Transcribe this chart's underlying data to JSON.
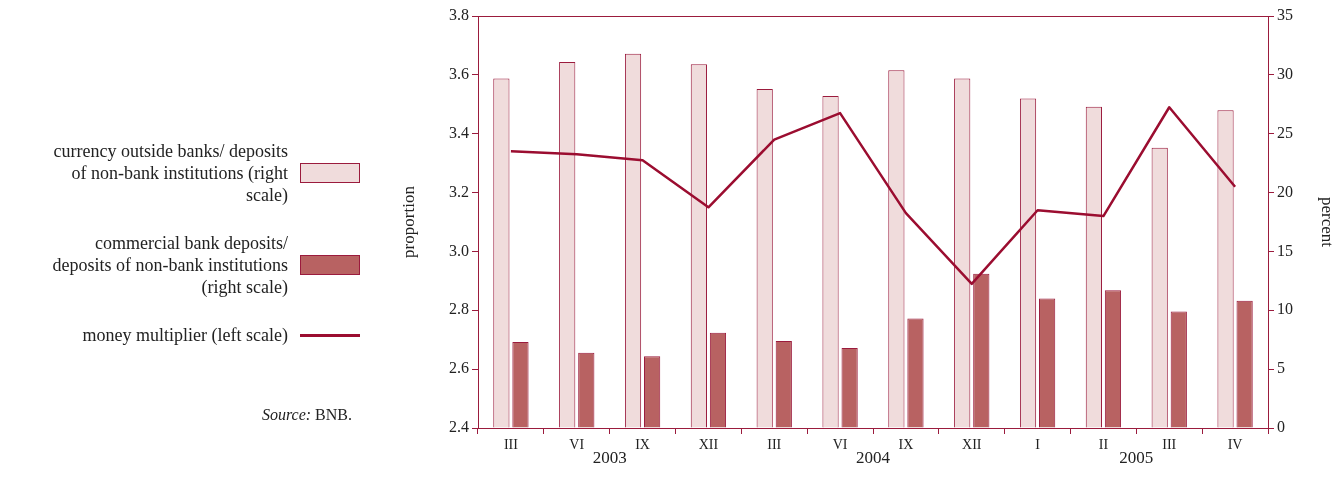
{
  "chart_data": {
    "type": "bar",
    "xlabel": null,
    "ylabel": "proportion",
    "y2label": "percent",
    "categories": [
      "III",
      "VI",
      "IX",
      "XII",
      "III",
      "VI",
      "IX",
      "XII",
      "I",
      "II",
      "III",
      "IV"
    ],
    "series": [
      {
        "name": "currency outside banks/ deposits of non-bank institutions (right scale)",
        "axis": "y2",
        "color": "#f0dcdc",
        "values": [
          29.7,
          31.1,
          31.8,
          30.9,
          28.8,
          28.2,
          30.4,
          29.7,
          28.0,
          27.3,
          23.8,
          27.0
        ]
      },
      {
        "name": "commercial bank deposits/ deposits of non-bank institutions (right scale)",
        "axis": "y2",
        "color": "#b86262",
        "values": [
          7.3,
          6.4,
          6.1,
          8.1,
          7.4,
          6.8,
          9.3,
          13.1,
          11.0,
          11.7,
          9.9,
          10.8
        ]
      },
      {
        "name": "money multiplier (left scale)",
        "type": "line",
        "color": "#9b0d30",
        "values": [
          3.34,
          3.33,
          3.31,
          3.15,
          3.38,
          3.47,
          3.13,
          2.89,
          3.14,
          3.12,
          3.49,
          3.22
        ]
      }
    ],
    "ylim": [
      2.4,
      3.8
    ],
    "yticks": [
      2.4,
      2.6,
      2.8,
      {
        "value": 3,
        "label": "3.0"
      },
      3.2,
      3.4,
      3.6,
      3.8
    ],
    "y2lim": [
      0,
      35
    ],
    "y2ticks": [
      0,
      5,
      10,
      15,
      20,
      25,
      30,
      35
    ],
    "grid": false,
    "legend": "left",
    "marker": "none",
    "line_style": "solid",
    "annotations": [
      "2003",
      "2004",
      "2005",
      "Source: BNB."
    ]
  }
}
